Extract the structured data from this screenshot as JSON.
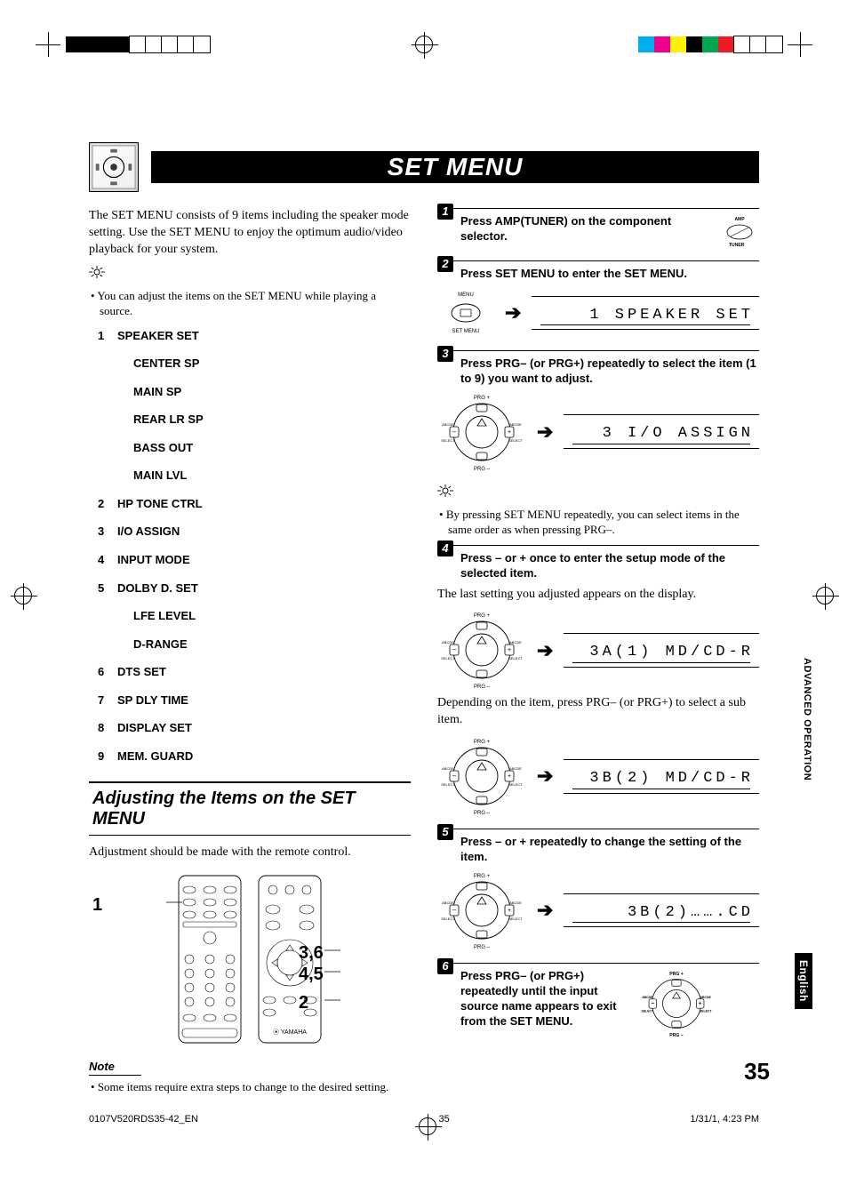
{
  "topstrip": {
    "left_colors": [
      "#000000",
      "#000000",
      "#000000",
      "#000000",
      "#ffffff",
      "#ffffff",
      "#ffffff",
      "#ffffff",
      "#ffffff"
    ],
    "left_stroke": [
      false,
      false,
      false,
      false,
      true,
      true,
      true,
      true,
      true
    ],
    "right_colors": [
      "#00aeef",
      "#ec008c",
      "#fff200",
      "#000000",
      "#00a651",
      "#ed1c24",
      "#ffffff",
      "#ffffff",
      "#ffffff"
    ],
    "right_stroke": [
      false,
      false,
      false,
      false,
      false,
      false,
      true,
      true,
      true
    ]
  },
  "title": "SET MENU",
  "left": {
    "intro": "The SET MENU consists of 9 items including the speaker mode setting. Use the SET MENU to enjoy the optimum audio/video playback for your system.",
    "tip": "You can adjust the items on the SET MENU while playing a source.",
    "menu": [
      {
        "n": "1",
        "label": "SPEAKER SET",
        "subs": [
          "CENTER SP",
          "MAIN SP",
          "REAR LR SP",
          "BASS OUT",
          "MAIN LVL"
        ]
      },
      {
        "n": "2",
        "label": "HP TONE CTRL"
      },
      {
        "n": "3",
        "label": "I/O ASSIGN"
      },
      {
        "n": "4",
        "label": "INPUT MODE"
      },
      {
        "n": "5",
        "label": "DOLBY D. SET",
        "subs": [
          "LFE LEVEL",
          "D-RANGE"
        ]
      },
      {
        "n": "6",
        "label": "DTS SET"
      },
      {
        "n": "7",
        "label": "SP DLY TIME"
      },
      {
        "n": "8",
        "label": "DISPLAY SET"
      },
      {
        "n": "9",
        "label": "MEM. GUARD"
      }
    ],
    "section_heading": "Adjusting the Items on the SET MENU",
    "section_body": "Adjustment should be made with the remote control.",
    "callouts": {
      "a": "1",
      "b": "3,6",
      "c": "4,5",
      "d": "2"
    },
    "note_heading": "Note",
    "note_body": "Some items require extra steps to change to the desired setting."
  },
  "right": {
    "step1": {
      "num": "1",
      "text": "Press AMP(TUNER) on the component selector.",
      "icon_labels": {
        "top": "AMP",
        "bottom": "TUNER"
      }
    },
    "step2": {
      "num": "2",
      "text": "Press SET MENU to enter the SET MENU.",
      "btn_top": "MENU",
      "btn_bottom": "SET MENU",
      "lcd": "1 SPEAKER SET"
    },
    "step3": {
      "num": "3",
      "text": "Press PRG– (or PRG+) repeatedly to select the item (1 to 9) you want to adjust.",
      "lcd": "3 I/O ASSIGN"
    },
    "tip": "By pressing SET MENU repeatedly, you can select items in the same order as when pressing PRG–.",
    "step4": {
      "num": "4",
      "text": "Press – or + once to enter the setup mode of the selected item.",
      "body1": "The last setting you adjusted appears on the display.",
      "lcd1": "3A(1) MD/CD-R",
      "body2": "Depending on the item, press PRG– (or PRG+) to select a sub item.",
      "lcd2": "3B(2) MD/CD-R"
    },
    "step5": {
      "num": "5",
      "text": "Press – or + repeatedly to change the setting of the item.",
      "lcd": "3B(2)…….CD"
    },
    "step6": {
      "num": "6",
      "text": "Press PRG– (or PRG+) repeatedly until the input source name appears to exit from the SET MENU."
    }
  },
  "side": {
    "adv": "ADVANCED OPERATION",
    "eng": "English"
  },
  "page_num": "35",
  "footer": {
    "file": "0107V520RDS35-42_EN",
    "page": "35",
    "stamp": "1/31/1, 4:23 PM"
  },
  "pad_labels": {
    "top": "PRG +",
    "bottom": "PRG –",
    "left_top": "ABCDE",
    "left_bot": "SELECT",
    "right_top": "ABCDE",
    "right_bot": "SELECT"
  }
}
